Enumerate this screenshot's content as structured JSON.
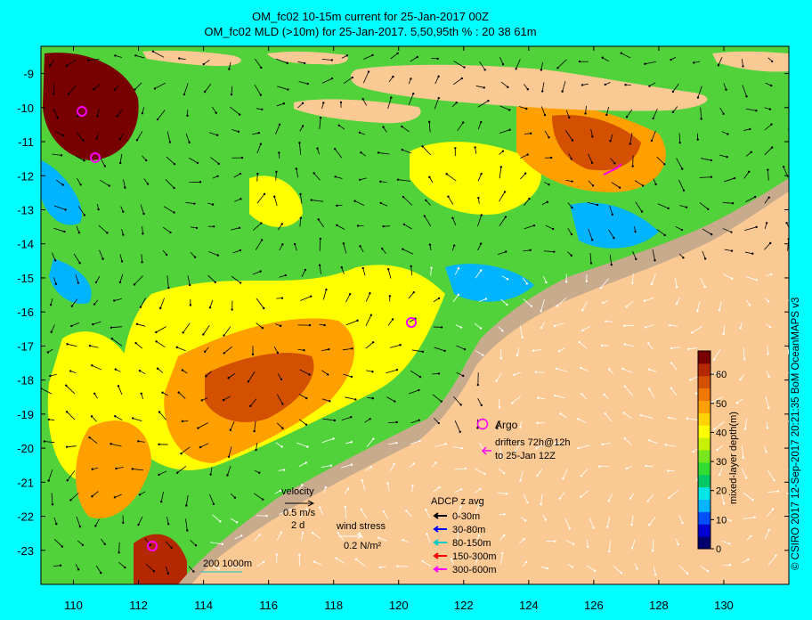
{
  "title_line1": "OM_fc02 10-15m current for 25-Jan-2017 00Z",
  "title_line2": "OM_fc02 MLD (>10m) for 25-Jan-2017. 5,50,95th % : 20  38  61m",
  "credit": "© CSIRO 2017   12-Sep-2017 20:21:35 BoM OceanMAPS v3",
  "axes": {
    "x_ticks": [
      "110",
      "112",
      "114",
      "116",
      "118",
      "120",
      "122",
      "124",
      "126",
      "128",
      "130"
    ],
    "y_ticks": [
      "-9",
      "-10",
      "-11",
      "-12",
      "-13",
      "-14",
      "-15",
      "-16",
      "-17",
      "-18",
      "-19",
      "-20",
      "-21",
      "-22",
      "-23"
    ],
    "lon_range": [
      109,
      132
    ],
    "lat_range": [
      -24,
      -8.2
    ]
  },
  "colorbar": {
    "title": "mixed-layer depth(m)",
    "ticks": [
      "0",
      "10",
      "20",
      "30",
      "40",
      "50",
      "60"
    ],
    "range": [
      0,
      68
    ],
    "colors": [
      "#00006e",
      "#0000d0",
      "#0050ff",
      "#00b4ff",
      "#00e6e6",
      "#00c864",
      "#32dc32",
      "#78e61e",
      "#c8f000",
      "#ffff00",
      "#ffd200",
      "#ffa000",
      "#f07800",
      "#d25000",
      "#b42800",
      "#780000"
    ]
  },
  "legend": {
    "argo": "Argo",
    "drifters_line1": "drifters 72h@12h",
    "drifters_line2": "to 25-Jan 12Z",
    "velocity_title": "velocity",
    "velocity_value": "0.5 m/s",
    "velocity_days": "2 d",
    "wind_title": "wind stress",
    "wind_value": "0.2 N/m²",
    "adcp_title": "ADCP z avg",
    "adcp": [
      {
        "label": "0-30m",
        "color": "#000000"
      },
      {
        "label": "30-80m",
        "color": "#0000ff"
      },
      {
        "label": "80-150m",
        "color": "#00c8c8"
      },
      {
        "label": "150-300m",
        "color": "#ff0000"
      },
      {
        "label": "300-600m",
        "color": "#ff00ff"
      }
    ],
    "isobaths": "200  1000m"
  },
  "colors": {
    "land": "#fbc993",
    "shelf": "#c8aa8c",
    "background": "#00ffff",
    "argo": "#ff00ff"
  }
}
